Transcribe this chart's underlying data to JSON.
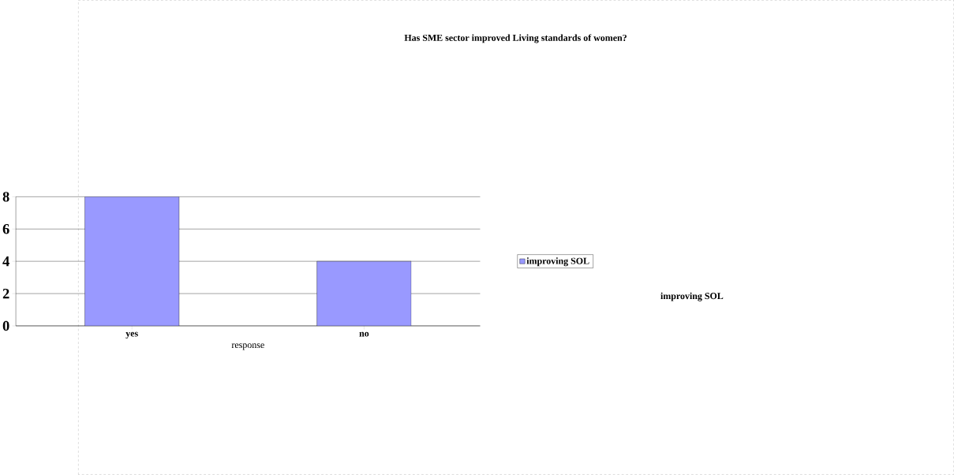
{
  "chart_data": {
    "type": "bar",
    "title": "Has SME sector improved Living standards of women?",
    "xlabel": "response",
    "categories": [
      "yes",
      "no"
    ],
    "series": [
      {
        "name": "improving SOL",
        "color": "#9999ff",
        "values": [
          8,
          4
        ]
      }
    ],
    "ylim": [
      0,
      8
    ],
    "yticks": [
      0,
      2,
      4,
      6,
      8
    ],
    "grid": "y",
    "legend": "right"
  }
}
